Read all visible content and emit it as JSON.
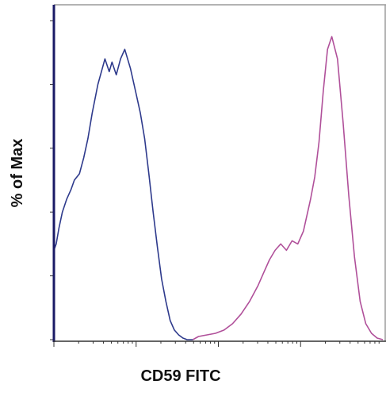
{
  "chart_data": {
    "type": "line",
    "title": "",
    "xlabel": "CD59 FITC",
    "ylabel": "% of Max",
    "x_scale": "log",
    "xlim": [
      0,
      100
    ],
    "ylim": [
      0,
      100
    ],
    "x_ticks_labeled": false,
    "y_ticks_labeled": false,
    "grid": false,
    "legend": "none",
    "series": [
      {
        "color": "#2e3a8c",
        "x": [
          0,
          0.8,
          1.8,
          3,
          4.5,
          6,
          7.2,
          9,
          10.5,
          12,
          13.5,
          15.5,
          18,
          19.5,
          20.5,
          22,
          23.5,
          25,
          27,
          29,
          30.5,
          32,
          33.5,
          35,
          36.5,
          38,
          39.5,
          41,
          42.5,
          44,
          45.5,
          47,
          49
        ],
        "y": [
          28,
          30,
          35,
          40,
          44,
          47,
          50,
          52,
          57,
          63,
          71,
          80,
          88,
          84,
          87,
          83,
          88,
          91,
          85,
          77,
          71,
          63,
          52,
          40,
          29,
          19,
          12,
          6,
          3,
          1.5,
          0.5,
          0,
          0
        ]
      },
      {
        "color": "#b0509a",
        "x": [
          49,
          51,
          54,
          57,
          60,
          63,
          66,
          69,
          72,
          74,
          76,
          78,
          80,
          82,
          84,
          86,
          88,
          89,
          90.5,
          92,
          93.5,
          95,
          96.5,
          98,
          100,
          102,
          104,
          106,
          108,
          110,
          112,
          114,
          116
        ],
        "y": [
          0,
          1,
          1.5,
          2,
          3,
          5,
          8,
          12,
          17,
          21,
          25,
          28,
          30,
          28,
          31,
          30,
          34,
          38,
          44,
          51,
          62,
          78,
          91,
          95,
          88,
          68,
          45,
          26,
          12,
          5,
          2,
          0.5,
          0
        ]
      }
    ]
  }
}
